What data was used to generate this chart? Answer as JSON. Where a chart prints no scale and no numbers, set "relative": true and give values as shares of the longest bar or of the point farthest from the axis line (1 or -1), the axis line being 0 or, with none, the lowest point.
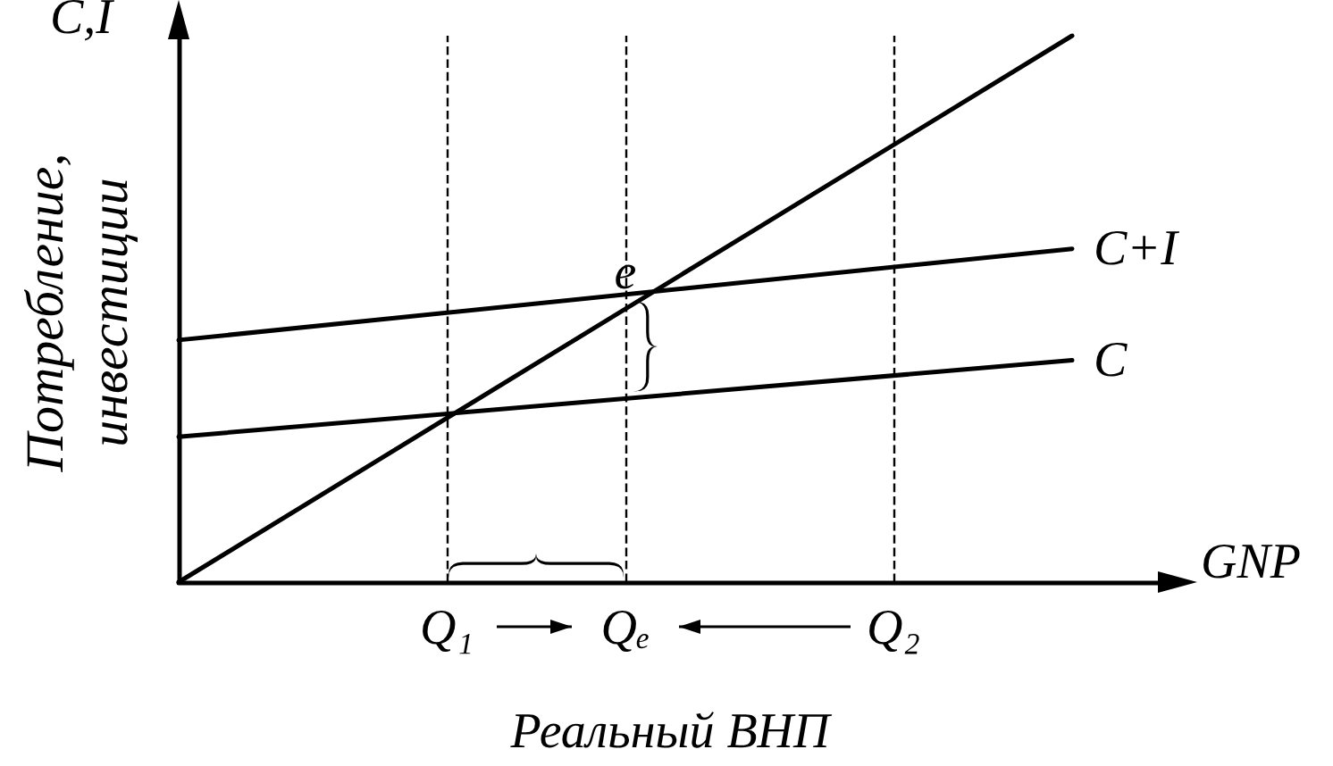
{
  "chart_data": {
    "type": "line",
    "relative": true,
    "xlabel": "Реальный ВНП",
    "ylabel": "Потребление, инвестиции",
    "legend": false,
    "grid": false,
    "marker": "none",
    "line_style": "solid",
    "categories": [
      null,
      null,
      null,
      "Q₁",
      null,
      "Qₑ",
      null,
      null,
      "Q₂",
      null,
      null,
      null
    ],
    "series": [
      {
        "color": "#000000",
        "values": [
          0,
          null,
          null,
          null,
          null,
          null,
          null,
          null,
          null,
          null,
          1,
          null
        ]
      },
      {
        "name": "C+I",
        "color": "#000000",
        "values": [
          0.443,
          null,
          null,
          null,
          null,
          null,
          null,
          null,
          null,
          null,
          0.61,
          null
        ]
      },
      {
        "name": "C",
        "color": "#000000",
        "values": [
          0.266,
          null,
          null,
          null,
          null,
          null,
          null,
          null,
          null,
          null,
          0.406,
          null
        ]
      }
    ],
    "ref_lines": [
      {
        "axis": "x",
        "value": "Q₁",
        "line_style": "dashed",
        "color": "#000000"
      },
      {
        "axis": "x",
        "value": "Qₑ",
        "line_style": "dashed",
        "color": "#000000"
      },
      {
        "axis": "x",
        "value": "Q₂",
        "line_style": "dashed",
        "color": "#000000"
      }
    ],
    "annotations": [
      {
        "text": "e",
        "x": "Qₑ",
        "y": 0.5
      },
      "C,I",
      "GNP"
    ]
  }
}
